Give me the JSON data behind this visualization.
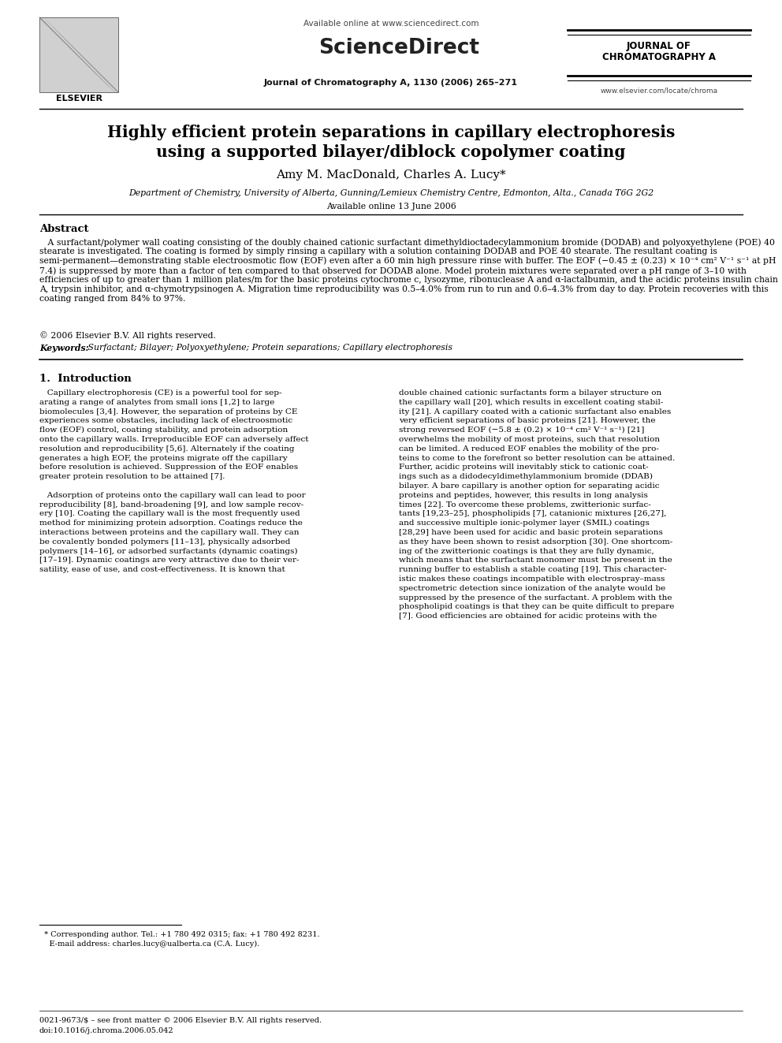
{
  "page_bg": "#ffffff",
  "header_available_online": "Available online at www.sciencedirect.com",
  "header_sciencedirect": "ScienceDirect",
  "header_journal_cite": "Journal of Chromatography A, 1130 (2006) 265–271",
  "header_journal_right1": "JOURNAL OF",
  "header_journal_right2": "CHROMATOGRAPHY A",
  "header_journal_url": "www.elsevier.com/locate/chroma",
  "header_elsevier": "ELSEVIER",
  "title_line1": "Highly efficient protein separations in capillary electrophoresis",
  "title_line2": "using a supported bilayer/diblock copolymer coating",
  "authors": "Amy M. MacDonald, Charles A. Lucy*",
  "affiliation": "Department of Chemistry, University of Alberta, Gunning/Lemieux Chemistry Centre, Edmonton, Alta., Canada T6G 2G2",
  "available_online": "Available online 13 June 2006",
  "abstract_title": "Abstract",
  "abstract_body": "   A surfactant/polymer wall coating consisting of the doubly chained cationic surfactant dimethyldioctadecylammonium bromide (DODAB) and polyoxyethylene (POE) 40 stearate is investigated. The coating is formed by simply rinsing a capillary with a solution containing DODAB and POE 40 stearate. The resultant coating is semi-permanent—demonstrating stable electroosmotic flow (EOF) even after a 60 min high pressure rinse with buffer. The EOF (−0.45 ± (0.23) × 10⁻⁴ cm² V⁻¹ s⁻¹ at pH 7.4) is suppressed by more than a factor of ten compared to that observed for DODAB alone. Model protein mixtures were separated over a pH range of 3–10 with efficiencies of up to greater than 1 million plates/m for the basic proteins cytochrome c, lysozyme, ribonuclease A and α-lactalbumin, and the acidic proteins insulin chain A, trypsin inhibitor, and α-chymotrypsinogen A. Migration time reproducibility was 0.5–4.0% from run to run and 0.6–4.3% from day to day. Protein recoveries with this coating ranged from 84% to 97%.",
  "copyright": "© 2006 Elsevier B.V. All rights reserved.",
  "keywords_label": "Keywords: ",
  "keywords_text": " Surfactant; Bilayer; Polyoxyethylene; Protein separations; Capillary electrophoresis",
  "section1_title": "1.  Introduction",
  "col1_lines": [
    "   Capillary electrophoresis (CE) is a powerful tool for sep-",
    "arating a range of analytes from small ions [1,2] to large",
    "biomolecules [3,4]. However, the separation of proteins by CE",
    "experiences some obstacles, including lack of electroosmotic",
    "flow (EOF) control, coating stability, and protein adsorption",
    "onto the capillary walls. Irreproducible EOF can adversely affect",
    "resolution and reproducibility [5,6]. Alternately if the coating",
    "generates a high EOF, the proteins migrate off the capillary",
    "before resolution is achieved. Suppression of the EOF enables",
    "greater protein resolution to be attained [7].",
    "",
    "   Adsorption of proteins onto the capillary wall can lead to poor",
    "reproducibility [8], band-broadening [9], and low sample recov-",
    "ery [10]. Coating the capillary wall is the most frequently used",
    "method for minimizing protein adsorption. Coatings reduce the",
    "interactions between proteins and the capillary wall. They can",
    "be covalently bonded polymers [11–13], physically adsorbed",
    "polymers [14–16], or adsorbed surfactants (dynamic coatings)",
    "[17–19]. Dynamic coatings are very attractive due to their ver-",
    "satility, ease of use, and cost-effectiveness. It is known that"
  ],
  "col2_lines": [
    "double chained cationic surfactants form a bilayer structure on",
    "the capillary wall [20], which results in excellent coating stabil-",
    "ity [21]. A capillary coated with a cationic surfactant also enables",
    "very efficient separations of basic proteins [21]. However, the",
    "strong reversed EOF (−5.8 ± (0.2) × 10⁻⁴ cm² V⁻¹ s⁻¹) [21]",
    "overwhelms the mobility of most proteins, such that resolution",
    "can be limited. A reduced EOF enables the mobility of the pro-",
    "teins to come to the forefront so better resolution can be attained.",
    "Further, acidic proteins will inevitably stick to cationic coat-",
    "ings such as a didodecyldimethylammonium bromide (DDAB)",
    "bilayer. A bare capillary is another option for separating acidic",
    "proteins and peptides, however, this results in long analysis",
    "times [22]. To overcome these problems, zwitterionic surfac-",
    "tants [19,23–25], phospholipids [7], catanionic mixtures [26,27],",
    "and successive multiple ionic-polymer layer (SMIL) coatings",
    "[28,29] have been used for acidic and basic protein separations",
    "as they have been shown to resist adsorption [30]. One shortcom-",
    "ing of the zwitterionic coatings is that they are fully dynamic,",
    "which means that the surfactant monomer must be present in the",
    "running buffer to establish a stable coating [19]. This character-",
    "istic makes these coatings incompatible with electrospray–mass",
    "spectrometric detection since ionization of the analyte would be",
    "suppressed by the presence of the surfactant. A problem with the",
    "phospholipid coatings is that they can be quite difficult to prepare",
    "[7]. Good efficiencies are obtained for acidic proteins with the"
  ],
  "footnote1": "  * Corresponding author. Tel.: +1 780 492 0315; fax: +1 780 492 8231.",
  "footnote2": "    E-mail address: charles.lucy@ualberta.ca (C.A. Lucy).",
  "footer1": "0021-9673/$ – see front matter © 2006 Elsevier B.V. All rights reserved.",
  "footer2": "doi:10.1016/j.chroma.2006.05.042"
}
